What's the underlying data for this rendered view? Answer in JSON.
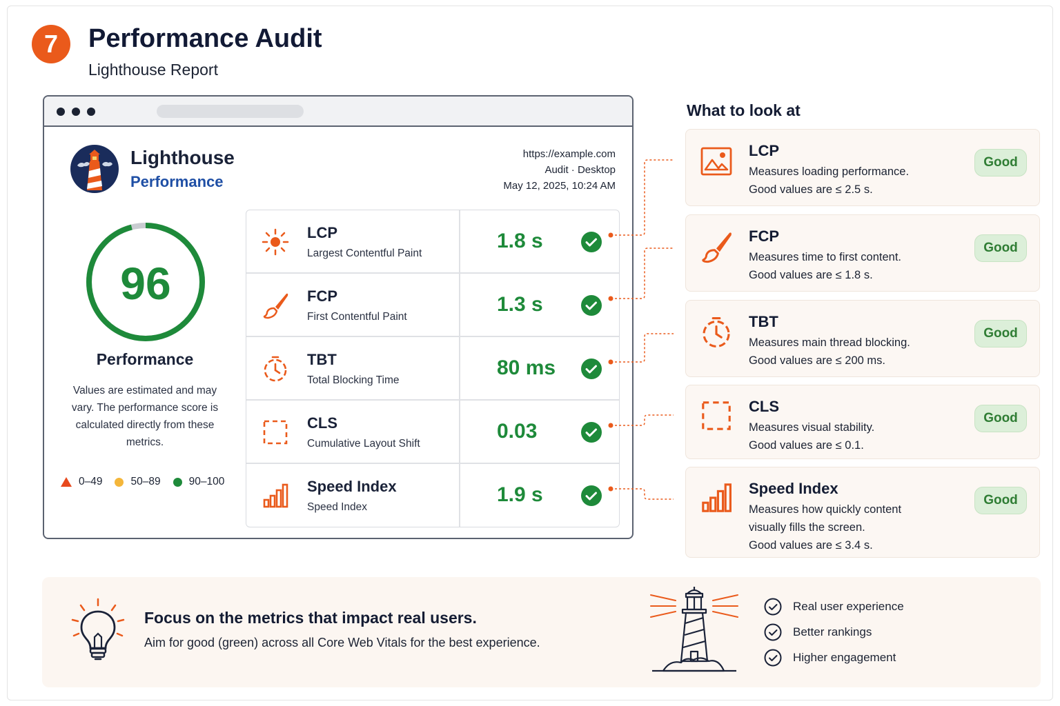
{
  "header": {
    "step_number": "7",
    "title": "Performance Audit",
    "subtitle": "Lighthouse Report"
  },
  "report": {
    "brand_name": "Lighthouse",
    "category": "Performance",
    "url": "https://example.com",
    "audit_type": "Audit · Desktop",
    "timestamp": "May 12, 2025, 10:24 AM",
    "score": "96",
    "score_fraction": 0.96,
    "score_label": "Performance",
    "score_note": "Values are estimated and may vary. The performance score is calculated directly from these metrics.",
    "legend": [
      {
        "label": "0–49",
        "shape": "triangle",
        "color": "#e8491d"
      },
      {
        "label": "50–89",
        "shape": "circle",
        "color": "#f4b63a"
      },
      {
        "label": "90–100",
        "shape": "circle",
        "color": "#1e8a3a"
      }
    ],
    "metrics": [
      {
        "abbr": "LCP",
        "name": "Largest Contentful Paint",
        "value": "1.8 s",
        "icon": "sun-icon"
      },
      {
        "abbr": "FCP",
        "name": "First Contentful Paint",
        "value": "1.3 s",
        "icon": "paintbrush-icon"
      },
      {
        "abbr": "TBT",
        "name": "Total Blocking Time",
        "value": "80 ms",
        "icon": "timer-icon"
      },
      {
        "abbr": "CLS",
        "name": "Cumulative Layout Shift",
        "value": "0.03",
        "icon": "dashed-square-icon"
      },
      {
        "abbr": "Speed Index",
        "name": "Speed Index",
        "value": "1.9 s",
        "icon": "bar-chart-icon"
      }
    ]
  },
  "look_at": {
    "title": "What to look at",
    "cards": [
      {
        "title": "LCP",
        "desc": [
          "Measures loading performance.",
          "Good values are ≤ 2.5 s."
        ],
        "badge": "Good",
        "icon": "image-icon"
      },
      {
        "title": "FCP",
        "desc": [
          "Measures time to first content.",
          "Good values are ≤ 1.8 s."
        ],
        "badge": "Good",
        "icon": "paintbrush-icon"
      },
      {
        "title": "TBT",
        "desc": [
          "Measures main thread blocking.",
          "Good values are ≤ 200 ms."
        ],
        "badge": "Good",
        "icon": "timer-icon"
      },
      {
        "title": "CLS",
        "desc": [
          "Measures visual stability.",
          "Good values are ≤ 0.1."
        ],
        "badge": "Good",
        "icon": "dashed-square-icon"
      },
      {
        "title": "Speed Index",
        "desc": [
          "Measures how quickly content",
          "visually fills the screen.",
          "Good values are ≤ 3.4 s."
        ],
        "badge": "Good",
        "icon": "bar-chart-icon"
      }
    ]
  },
  "banner": {
    "headline": "Focus on the metrics that impact real users.",
    "subline": "Aim for good (green) across all Core Web Vitals for the best experience.",
    "bullets": [
      "Real user experience",
      "Better rankings",
      "Higher engagement"
    ]
  },
  "colors": {
    "accent": "#ea5a1b",
    "good": "#1e8a3a",
    "brand_blue": "#1f4fa5"
  }
}
